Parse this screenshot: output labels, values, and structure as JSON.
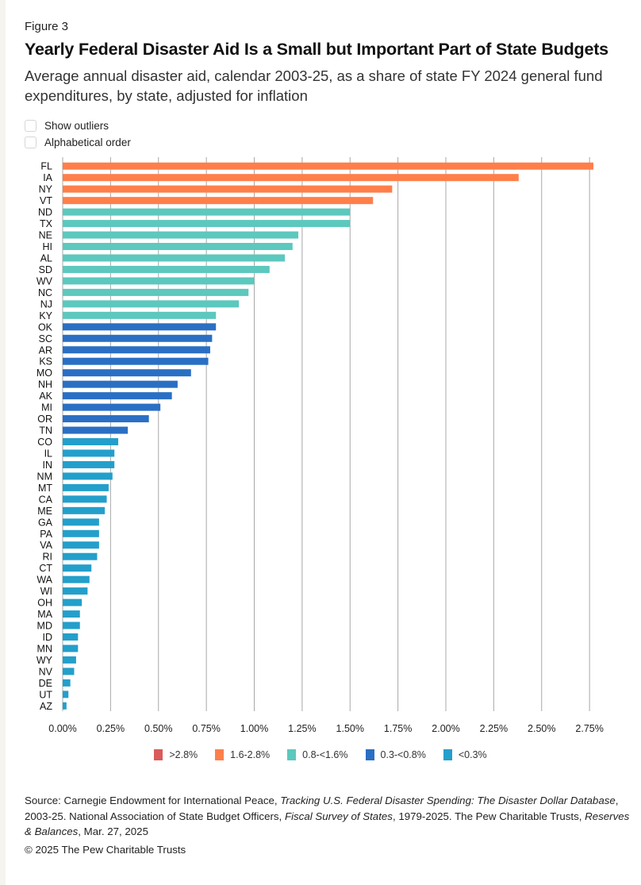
{
  "figure_label": "Figure 3",
  "controls": [
    {
      "label": "Show outliers",
      "checked": false
    },
    {
      "label": "Alphabetical order",
      "checked": false
    }
  ],
  "source": {
    "prefix": "Source: Carnegie Endowment for International Peace, ",
    "title1": "Tracking U.S. Federal Disaster Spending: The Disaster Dollar Database",
    "mid1": ", 2003-25. National Association of State Budget Officers, ",
    "title2": "Fiscal Survey of States",
    "mid2": ", 1979-2025. The Pew Charitable Trusts, ",
    "title3": "Reserves & Balances",
    "suffix": ", Mar. 27, 2025"
  },
  "copyright": "© 2025 The Pew Charitable Trusts",
  "colors": {
    ">2.8%": "#d95b5b",
    "1.6-2.8%": "#ff7f4a",
    "0.8-<1.6%": "#5cc8be",
    "0.3-<0.8%": "#2a6fc4",
    "<0.3%": "#239fcb",
    "gridline": "#a8a8a8"
  },
  "chart_data": {
    "type": "bar",
    "orientation": "horizontal",
    "title": "Yearly Federal Disaster Aid Is a Small but Important Part of State Budgets",
    "subtitle": "Average annual disaster aid, calendar 2003-25, as a share of state FY 2024 general fund expenditures, by state, adjusted for inflation",
    "xlabel": "",
    "ylabel": "",
    "xlim": [
      0,
      2.75
    ],
    "x_unit": "%",
    "x_ticks": [
      "0.00%",
      "0.25%",
      "0.50%",
      "0.75%",
      "1.00%",
      "1.25%",
      "1.50%",
      "1.75%",
      "2.00%",
      "2.25%",
      "2.50%",
      "2.75%"
    ],
    "x_tick_values": [
      0,
      0.25,
      0.5,
      0.75,
      1.0,
      1.25,
      1.5,
      1.75,
      2.0,
      2.25,
      2.5,
      2.75
    ],
    "grid": "vertical",
    "legend": {
      "placement": "bottom",
      "entries": [
        ">2.8%",
        "1.6-2.8%",
        "0.8-<1.6%",
        "0.3-<0.8%",
        "<0.3%"
      ]
    },
    "categories": [
      "FL",
      "IA",
      "NY",
      "VT",
      "ND",
      "TX",
      "NE",
      "HI",
      "AL",
      "SD",
      "WV",
      "NC",
      "NJ",
      "KY",
      "OK",
      "SC",
      "AR",
      "KS",
      "MO",
      "NH",
      "AK",
      "MI",
      "OR",
      "TN",
      "CO",
      "IL",
      "IN",
      "NM",
      "MT",
      "CA",
      "ME",
      "GA",
      "PA",
      "VA",
      "RI",
      "CT",
      "WA",
      "WI",
      "OH",
      "MA",
      "MD",
      "ID",
      "MN",
      "WY",
      "NV",
      "DE",
      "UT",
      "AZ"
    ],
    "values": [
      2.77,
      2.38,
      1.72,
      1.62,
      1.5,
      1.5,
      1.23,
      1.2,
      1.16,
      1.08,
      1.0,
      0.97,
      0.92,
      0.8,
      0.8,
      0.78,
      0.77,
      0.76,
      0.67,
      0.6,
      0.57,
      0.51,
      0.45,
      0.34,
      0.29,
      0.27,
      0.27,
      0.26,
      0.24,
      0.23,
      0.22,
      0.19,
      0.19,
      0.19,
      0.18,
      0.15,
      0.14,
      0.13,
      0.1,
      0.09,
      0.09,
      0.08,
      0.08,
      0.07,
      0.06,
      0.04,
      0.03,
      0.02
    ],
    "bins": [
      "1.6-2.8%",
      "1.6-2.8%",
      "1.6-2.8%",
      "1.6-2.8%",
      "0.8-<1.6%",
      "0.8-<1.6%",
      "0.8-<1.6%",
      "0.8-<1.6%",
      "0.8-<1.6%",
      "0.8-<1.6%",
      "0.8-<1.6%",
      "0.8-<1.6%",
      "0.8-<1.6%",
      "0.8-<1.6%",
      "0.3-<0.8%",
      "0.3-<0.8%",
      "0.3-<0.8%",
      "0.3-<0.8%",
      "0.3-<0.8%",
      "0.3-<0.8%",
      "0.3-<0.8%",
      "0.3-<0.8%",
      "0.3-<0.8%",
      "0.3-<0.8%",
      "<0.3%",
      "<0.3%",
      "<0.3%",
      "<0.3%",
      "<0.3%",
      "<0.3%",
      "<0.3%",
      "<0.3%",
      "<0.3%",
      "<0.3%",
      "<0.3%",
      "<0.3%",
      "<0.3%",
      "<0.3%",
      "<0.3%",
      "<0.3%",
      "<0.3%",
      "<0.3%",
      "<0.3%",
      "<0.3%",
      "<0.3%",
      "<0.3%",
      "<0.3%",
      "<0.3%"
    ]
  }
}
